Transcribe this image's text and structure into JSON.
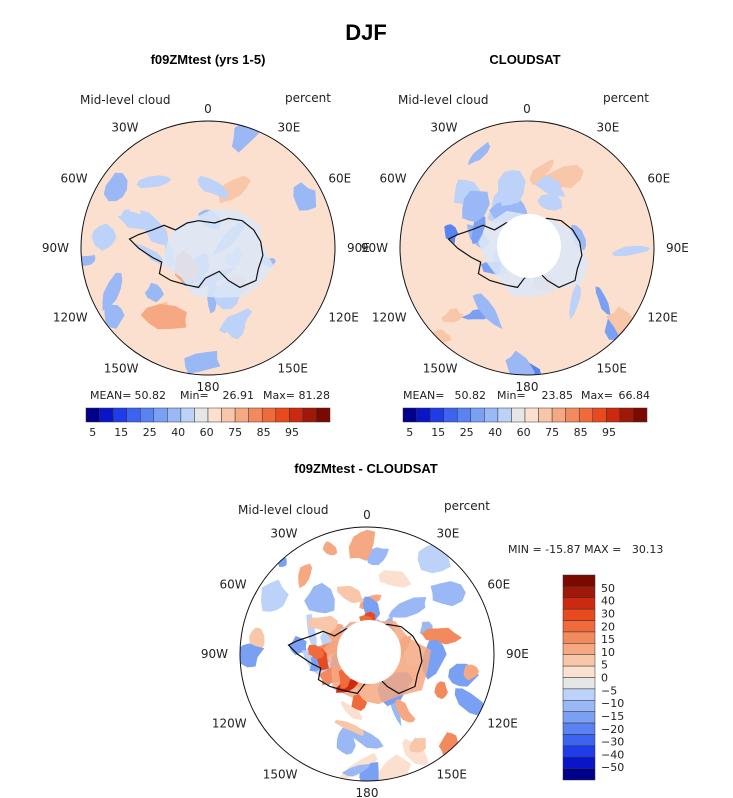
{
  "title": "DJF",
  "colors": {
    "neg": [
      "#00008b",
      "#0a14c8",
      "#1e3ce8",
      "#3c64f0",
      "#5a82f0",
      "#7aa0f4",
      "#9ab8f6",
      "#bcd2f8"
    ],
    "near": "#e6e6e6",
    "pos": [
      "#fbe0cf",
      "#f8c6a8",
      "#f5a882",
      "#f38a5e",
      "#f06a3c",
      "#e84a1e",
      "#cc2a10",
      "#a01808",
      "#7a0a00"
    ],
    "land": "#dce8f8"
  },
  "icons": [
    "antarctica-coastline-icon"
  ],
  "chart_data": [
    {
      "type": "heatmap",
      "title": "f09ZMtest (yrs 1-5)",
      "variable": "Mid-level cloud",
      "units": "percent",
      "projection": "south-polar-stereographic",
      "lon_labels": [
        "0",
        "30E",
        "60E",
        "90E",
        "120E",
        "150E",
        "180",
        "150W",
        "120W",
        "90W",
        "60W",
        "30W"
      ],
      "stats": {
        "mean_label": "MEAN=",
        "mean": "50.82",
        "min_label": "Min=",
        "min": "26.91",
        "max_label": "Max=",
        "max": "81.28"
      },
      "colorbar_levels": [
        5,
        10,
        15,
        20,
        25,
        30,
        35,
        40,
        50,
        60,
        65,
        75,
        80,
        85,
        90,
        95
      ],
      "colorbar_labels": [
        "5",
        "15",
        "25",
        "40",
        "60",
        "75",
        "85",
        "95"
      ],
      "colorbar_range": [
        0,
        100
      ]
    },
    {
      "type": "heatmap",
      "title": "CLOUDSAT",
      "variable": "Mid-level cloud",
      "units": "percent",
      "projection": "south-polar-stereographic",
      "lon_labels": [
        "0",
        "30E",
        "60E",
        "90E",
        "120E",
        "150E",
        "180",
        "150W",
        "120W",
        "90W",
        "60W",
        "30W"
      ],
      "stats": {
        "mean_label": "MEAN=",
        "mean": "50.82",
        "min_label": "Min=",
        "min": "23.85",
        "max_label": "Max=",
        "max": "66.84"
      },
      "colorbar_levels": [
        5,
        10,
        15,
        20,
        25,
        30,
        35,
        40,
        50,
        60,
        65,
        75,
        80,
        85,
        90,
        95
      ],
      "colorbar_labels": [
        "5",
        "15",
        "25",
        "40",
        "60",
        "75",
        "85",
        "95"
      ],
      "colorbar_range": [
        0,
        100
      ],
      "missing_data": "polar cap (no data)"
    },
    {
      "type": "heatmap",
      "title": "f09ZMtest - CLOUDSAT",
      "variable": "Mid-level cloud",
      "units": "percent",
      "projection": "south-polar-stereographic",
      "lon_labels": [
        "0",
        "30E",
        "60E",
        "90E",
        "120E",
        "150E",
        "180",
        "150W",
        "120W",
        "90W",
        "60W",
        "30W"
      ],
      "stats_text": "MIN = -15.87 MAX =   30.13",
      "colorbar_orientation": "vertical",
      "colorbar_levels": [
        -50,
        -40,
        -30,
        -20,
        -15,
        -10,
        -5,
        0,
        5,
        10,
        15,
        20,
        30,
        40,
        50
      ],
      "colorbar_labels": [
        "50",
        "40",
        "30",
        "20",
        "15",
        "10",
        "5",
        "0",
        "−5",
        "−10",
        "−15",
        "−20",
        "−30",
        "−40",
        "−50"
      ],
      "missing_data": "polar cap (no data)"
    }
  ]
}
